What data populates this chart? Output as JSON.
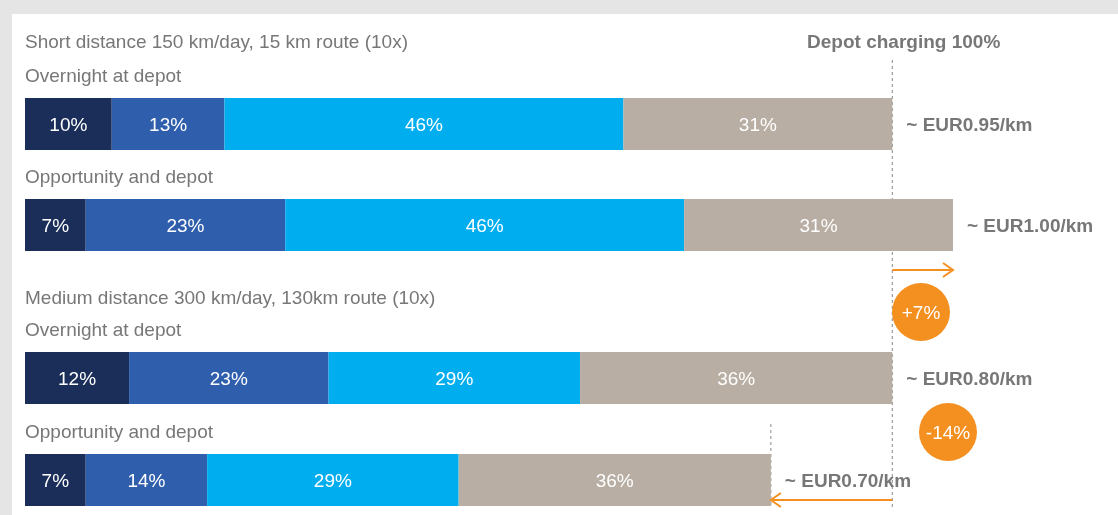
{
  "chart_data": {
    "type": "bar",
    "orientation": "horizontal",
    "stacked": true,
    "categories": [
      "Overnight at depot",
      "Opportunity and depot",
      "Overnight at depot",
      "Opportunity and depot"
    ],
    "series": [
      {
        "color": "#1b2e5a",
        "values": [
          10,
          7,
          12,
          7
        ],
        "value_labels": [
          "10%",
          "7%",
          "12%",
          "7%"
        ]
      },
      {
        "color": "#2f5ead",
        "values": [
          13,
          23,
          23,
          14
        ],
        "value_labels": [
          "13%",
          "23%",
          "23%",
          "14%"
        ]
      },
      {
        "color": "#00adef",
        "values": [
          46,
          46,
          29,
          29
        ],
        "value_labels": [
          "46%",
          "46%",
          "29%",
          "29%"
        ]
      },
      {
        "color": "#b8aea3",
        "values": [
          31,
          31,
          36,
          36
        ],
        "value_labels": [
          "31%",
          "31%",
          "36%",
          "36%"
        ]
      }
    ],
    "totals": [
      "~ EUR0.95/km",
      "~ EUR1.00/km",
      "~ EUR0.80/km",
      "~ EUR0.70/km"
    ],
    "ref_lines": [
      {
        "axis": "x",
        "value": 100,
        "label": "Depot charging 100%",
        "line_style": "dashed"
      },
      {
        "axis": "x",
        "value": 86,
        "line_style": "dashed"
      }
    ],
    "annotations": [
      "Short distance 150 km/day, 15 km route (10x)",
      "Medium distance 300 km/day, 130km route (10x)",
      "+7%",
      "-14%"
    ]
  }
}
